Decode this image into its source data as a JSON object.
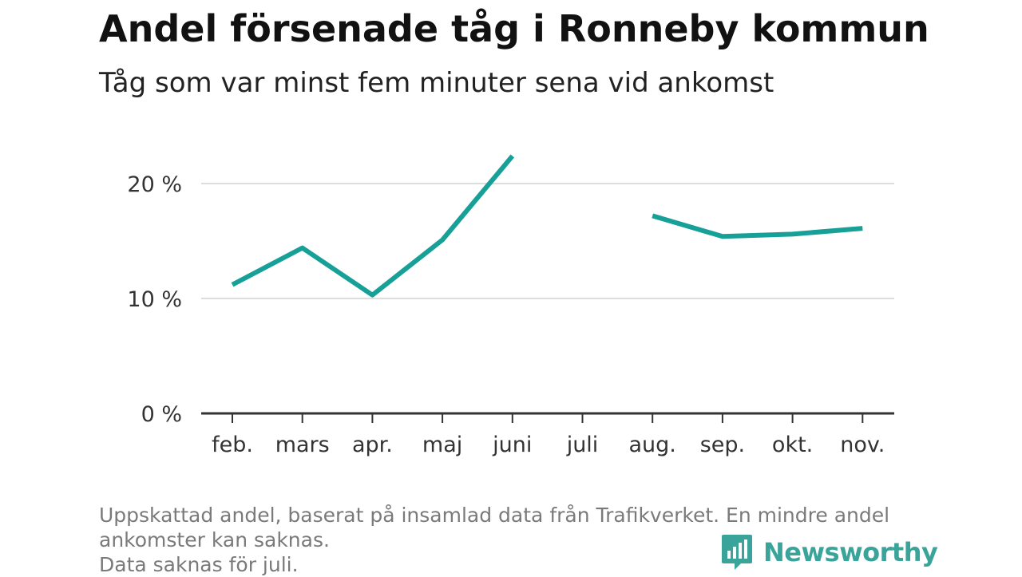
{
  "header": {
    "title": "Andel försenade tåg i Ronneby kommun",
    "subtitle": "Tåg som var minst fem minuter sena vid ankomst"
  },
  "chart_data": {
    "type": "line",
    "title": "Andel försenade tåg i Ronneby kommun",
    "subtitle": "Tåg som var minst fem minuter sena vid ankomst",
    "categories": [
      "feb.",
      "mars",
      "apr.",
      "maj",
      "juni",
      "juli",
      "aug.",
      "sep.",
      "okt.",
      "nov."
    ],
    "series": [
      {
        "values": [
          11.2,
          14.4,
          10.3,
          15.1,
          22.4,
          null,
          17.2,
          15.4,
          15.6,
          16.1
        ]
      }
    ],
    "y_ticks": [
      {
        "value": 0,
        "label": "0 %"
      },
      {
        "value": 10,
        "label": "10 %"
      },
      {
        "value": 20,
        "label": "20 %"
      }
    ],
    "ylim": [
      0,
      25
    ],
    "grid": true,
    "line_color": "#17a097",
    "grid_color": "#dddddd",
    "axis_color": "#333333"
  },
  "footer": {
    "note_lines": [
      "Uppskattad andel, baserat på insamlad data från Trafikverket. En mindre andel",
      "ankomster kan saknas.",
      "Data saknas för juli."
    ],
    "brand_name": "Newsworthy",
    "brand_icon": "newsworthy-bar-chart-icon",
    "brand_color": "#3aa39a"
  }
}
